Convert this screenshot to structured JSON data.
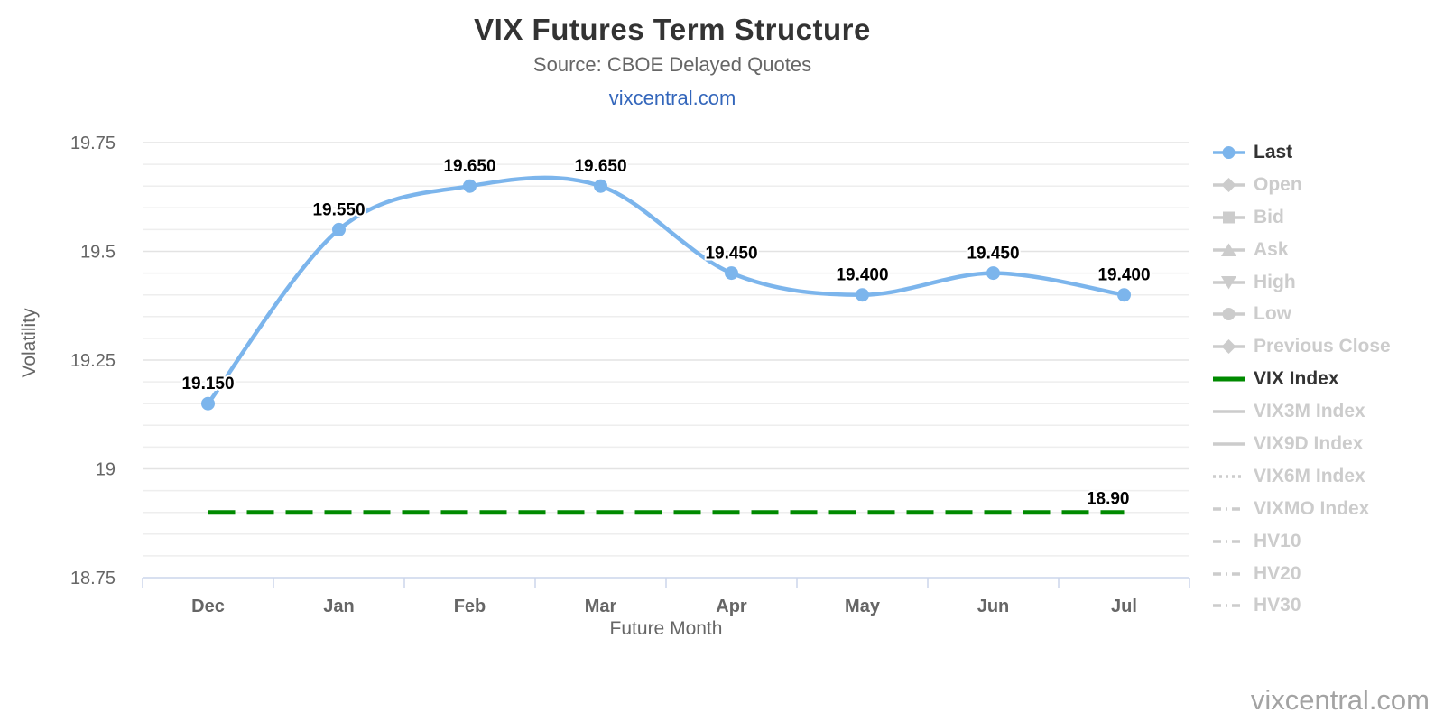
{
  "header": {
    "title": "VIX Futures Term Structure",
    "subtitle": "Source: CBOE Delayed Quotes",
    "link_label": "vixcentral.com"
  },
  "footer": {
    "watermark": "vixcentral.com"
  },
  "colors": {
    "last_series_blue": "#7cb5ec",
    "vix_index_green": "#008a00",
    "grid_major": "#e3e3e3",
    "grid_minor": "#eeeeee",
    "axis_line": "#ccd6eb",
    "axis_text": "#666666",
    "legend_disabled": "#cccccc",
    "legend_active_text": "#333333",
    "data_label_text": "#000000",
    "link_blue": "#3366bb",
    "watermark_gray": "#a3a3a3"
  },
  "chart_data": {
    "type": "line",
    "title": "VIX Futures Term Structure",
    "subtitle": "Source: CBOE Delayed Quotes",
    "xlabel": "Future Month",
    "ylabel": "Volatility",
    "categories": [
      "Dec",
      "Jan",
      "Feb",
      "Mar",
      "Apr",
      "May",
      "Jun",
      "Jul"
    ],
    "ylim": [
      18.75,
      19.775
    ],
    "y_major_ticks": [
      19.75,
      19.5,
      19.25,
      19,
      18.75
    ],
    "y_major_tick_labels": [
      "19.75",
      "19.5",
      "19.25",
      "19",
      "18.75"
    ],
    "y_minor_step": 0.05,
    "grid": true,
    "legend_position": "right",
    "series": [
      {
        "name": "Last",
        "type": "spline",
        "color": "#7cb5ec",
        "values": [
          19.15,
          19.55,
          19.65,
          19.65,
          19.45,
          19.4,
          19.45,
          19.4
        ],
        "point_labels": [
          "19.150",
          "19.550",
          "19.650",
          "19.650",
          "19.450",
          "19.400",
          "19.450",
          "19.400"
        ]
      },
      {
        "name": "VIX Index",
        "type": "horizontal-dashed-line",
        "color": "#008a00",
        "value": 18.9,
        "label": "18.90"
      }
    ],
    "legend": {
      "items": [
        {
          "label": "Last",
          "symbol": "line-circle",
          "state": "active",
          "color": "#7cb5ec",
          "text_color": "#333333"
        },
        {
          "label": "Open",
          "symbol": "line-diamond",
          "state": "disabled",
          "color": "#cccccc",
          "text_color": "#cccccc"
        },
        {
          "label": "Bid",
          "symbol": "line-square",
          "state": "disabled",
          "color": "#cccccc",
          "text_color": "#cccccc"
        },
        {
          "label": "Ask",
          "symbol": "line-triangle",
          "state": "disabled",
          "color": "#cccccc",
          "text_color": "#cccccc"
        },
        {
          "label": "High",
          "symbol": "line-triangle-down",
          "state": "disabled",
          "color": "#cccccc",
          "text_color": "#cccccc"
        },
        {
          "label": "Low",
          "symbol": "line-circle",
          "state": "disabled",
          "color": "#cccccc",
          "text_color": "#cccccc"
        },
        {
          "label": "Previous Close",
          "symbol": "line-diamond",
          "state": "disabled",
          "color": "#cccccc",
          "text_color": "#cccccc"
        },
        {
          "label": "VIX Index",
          "symbol": "thick-line",
          "state": "active",
          "color": "#008a00",
          "text_color": "#333333"
        },
        {
          "label": "VIX3M Index",
          "symbol": "line",
          "state": "disabled",
          "color": "#cccccc",
          "text_color": "#cccccc"
        },
        {
          "label": "VIX9D Index",
          "symbol": "line",
          "state": "disabled",
          "color": "#cccccc",
          "text_color": "#cccccc"
        },
        {
          "label": "VIX6M Index",
          "symbol": "dotted-line",
          "state": "disabled",
          "color": "#cccccc",
          "text_color": "#cccccc"
        },
        {
          "label": "VIXMO Index",
          "symbol": "dashdot-line",
          "state": "disabled",
          "color": "#cccccc",
          "text_color": "#cccccc"
        },
        {
          "label": "HV10",
          "symbol": "dashdot-line",
          "state": "disabled",
          "color": "#cccccc",
          "text_color": "#cccccc"
        },
        {
          "label": "HV20",
          "symbol": "dashdot-line",
          "state": "disabled",
          "color": "#cccccc",
          "text_color": "#cccccc"
        },
        {
          "label": "HV30",
          "symbol": "dashdot-line",
          "state": "disabled",
          "color": "#cccccc",
          "text_color": "#cccccc"
        }
      ]
    }
  }
}
